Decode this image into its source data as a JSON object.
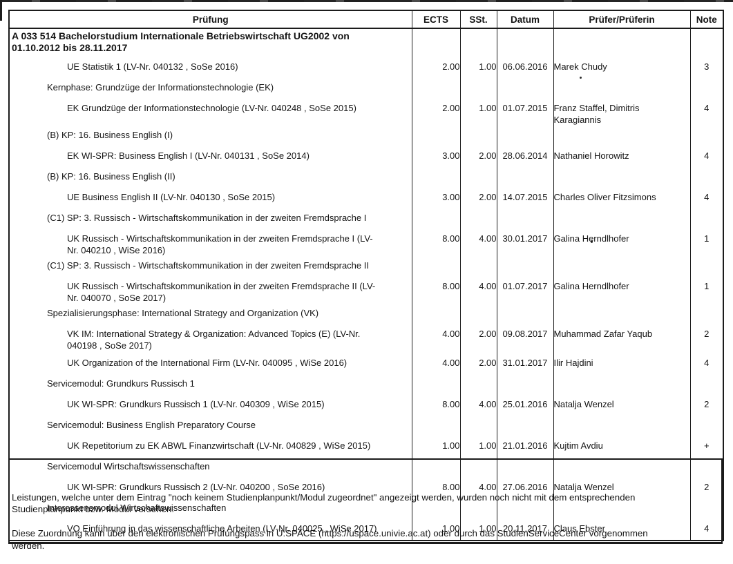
{
  "colors": {
    "text": "#141414",
    "border": "#1b1b1b",
    "background": "#ffffff"
  },
  "table": {
    "headers": [
      "Prüfung",
      "ECTS",
      "SSt.",
      "Datum",
      "Prüfer/Prüferin",
      "Note"
    ],
    "rows": [
      {
        "type": "group",
        "text": "A 033 514 Bachelorstudium Internationale Betriebswirtschaft UG2002 von\n01.10.2012 bis 28.11.2017"
      },
      {
        "type": "course",
        "name": "UE Statistik 1 (LV-Nr. 040132 , SoSe 2016)",
        "ects": "2.00",
        "sst": "1.00",
        "datum": "06.06.2016",
        "pruefer": "Marek Chudy",
        "note": "3"
      },
      {
        "type": "category",
        "text": "Kernphase: Grundzüge der Informationstechnologie (EK)"
      },
      {
        "type": "course",
        "name": "EK Grundzüge der Informationstechnologie (LV-Nr. 040248 , SoSe 2015)",
        "ects": "2.00",
        "sst": "1.00",
        "datum": "01.07.2015",
        "pruefer": "Franz Staffel, Dimitris\nKaragiannis",
        "note": "4"
      },
      {
        "type": "category",
        "text": "(B) KP: 16. Business English (I)"
      },
      {
        "type": "course",
        "name": "EK WI-SPR: Business English I (LV-Nr. 040131 , SoSe 2014)",
        "ects": "3.00",
        "sst": "2.00",
        "datum": "28.06.2014",
        "pruefer": "Nathaniel Horowitz",
        "note": "4"
      },
      {
        "type": "category",
        "text": "(B) KP: 16. Business English (II)"
      },
      {
        "type": "course",
        "name": "UE Business English II (LV-Nr. 040130 , SoSe 2015)",
        "ects": "3.00",
        "sst": "2.00",
        "datum": "14.07.2015",
        "pruefer": "Charles Oliver Fitzsimons",
        "note": "4"
      },
      {
        "type": "category",
        "text": "(C1) SP: 3. Russisch - Wirtschaftskommunikation in der zweiten Fremdsprache I"
      },
      {
        "type": "course",
        "name": "UK Russisch - Wirtschaftskommunikation in der zweiten Fremdsprache I (LV-\nNr. 040210 , WiSe 2016)",
        "ects": "8.00",
        "sst": "4.00",
        "datum": "30.01.2017",
        "pruefer": "Galina Herndlhofer",
        "note": "1"
      },
      {
        "type": "category",
        "text": "(C1) SP: 3. Russisch - Wirtschaftskommunikation in der zweiten Fremdsprache II"
      },
      {
        "type": "course",
        "name": "UK Russisch - Wirtschaftskommunikation in der zweiten Fremdsprache II (LV-\nNr. 040070 , SoSe 2017)",
        "ects": "8.00",
        "sst": "4.00",
        "datum": "01.07.2017",
        "pruefer": "Galina Herndlhofer",
        "note": "1"
      },
      {
        "type": "category",
        "text": "Spezialisierungsphase: International Strategy and Organization (VK)"
      },
      {
        "type": "course",
        "name": "VK IM: International Strategy & Organization: Advanced Topics (E) (LV-Nr.\n040198 , SoSe 2017)",
        "ects": "4.00",
        "sst": "2.00",
        "datum": "09.08.2017",
        "pruefer": "Muhammad Zafar Yaqub",
        "note": "2"
      },
      {
        "type": "course",
        "name": "UK Organization of the International Firm (LV-Nr. 040095 , WiSe 2016)",
        "ects": "4.00",
        "sst": "2.00",
        "datum": "31.01.2017",
        "pruefer": "Ilir Hajdini",
        "note": "4"
      },
      {
        "type": "category",
        "text": "Servicemodul: Grundkurs Russisch 1"
      },
      {
        "type": "course",
        "name": "UK WI-SPR: Grundkurs Russisch 1 (LV-Nr. 040309 , WiSe 2015)",
        "ects": "8.00",
        "sst": "4.00",
        "datum": "25.01.2016",
        "pruefer": "Natalja Wenzel",
        "note": "2"
      },
      {
        "type": "category",
        "text": "Servicemodul: Business English Preparatory Course"
      },
      {
        "type": "course",
        "name": "UK Repetitorium zu EK ABWL Finanzwirtschaft (LV-Nr. 040829 , WiSe 2015)",
        "ects": "1.00",
        "sst": "1.00",
        "datum": "21.01.2016",
        "pruefer": "Kujtim Avdiu",
        "note": "+"
      },
      {
        "type": "category",
        "text": "Servicemodul Wirtschaftswissenschaften"
      },
      {
        "type": "course",
        "name": "UK WI-SPR: Grundkurs Russisch 2 (LV-Nr. 040200 , SoSe 2016)",
        "ects": "8.00",
        "sst": "4.00",
        "datum": "27.06.2016",
        "pruefer": "Natalja Wenzel",
        "note": "2"
      },
      {
        "type": "category",
        "text": "Interessensmodul Wirtschaftswissenschaften"
      },
      {
        "type": "course",
        "name": "VO Einführung in das wissenschaftliche Arbeiten (LV-Nr. 040025 , WiSe 2017)",
        "ects": "1.00",
        "sst": "1.00",
        "datum": "20.11.2017",
        "pruefer": "Claus Ebster",
        "note": "4"
      }
    ]
  },
  "footer": {
    "paragraph1": "Leistungen, welche unter dem Eintrag \"noch keinem Studienplanpunkt/Modul zugeordnet\" angezeigt werden, wurden noch nicht mit dem entsprechenden\nStudienplanpunkt bzw. Modul versehen.",
    "paragraph2": "Diese Zuordnung kann über den elektronischen Prüfungspass in U:SPACE (https://uspace.univie.ac.at) oder durch das StudienServiceCenter vorgenommen\nwerden."
  }
}
